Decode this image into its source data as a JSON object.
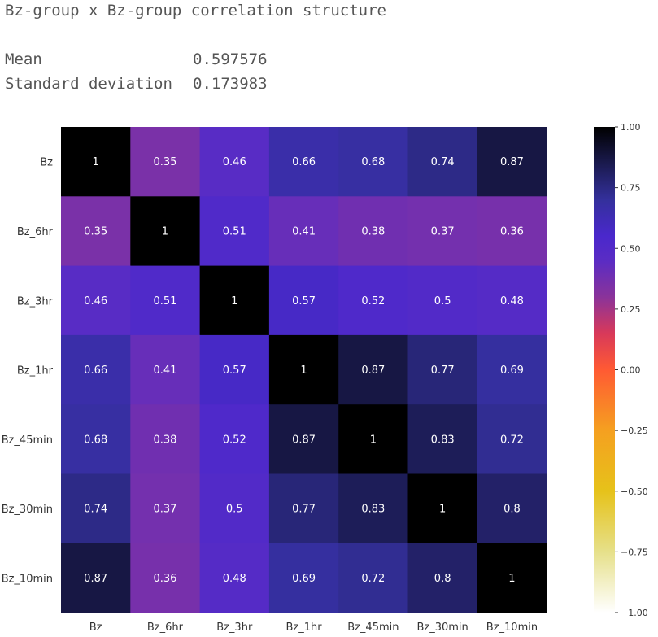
{
  "header": {
    "title": "Bz-group x Bz-group correlation structure",
    "stats": [
      {
        "label": "Mean",
        "value": "0.597576"
      },
      {
        "label": "Standard deviation",
        "value": "0.173983"
      }
    ]
  },
  "chart_data": {
    "type": "heatmap",
    "rows": [
      "Bz",
      "Bz_6hr",
      "Bz_3hr",
      "Bz_1hr",
      "Bz_45min",
      "Bz_30min",
      "Bz_10min"
    ],
    "columns": [
      "Bz",
      "Bz_6hr",
      "Bz_3hr",
      "Bz_1hr",
      "Bz_45min",
      "Bz_30min",
      "Bz_10min"
    ],
    "values": [
      [
        1,
        0.35,
        0.46,
        0.66,
        0.68,
        0.74,
        0.87
      ],
      [
        0.35,
        1,
        0.51,
        0.41,
        0.38,
        0.37,
        0.36
      ],
      [
        0.46,
        0.51,
        1,
        0.57,
        0.52,
        0.5,
        0.48
      ],
      [
        0.66,
        0.41,
        0.57,
        1,
        0.87,
        0.77,
        0.69
      ],
      [
        0.68,
        0.38,
        0.52,
        0.87,
        1,
        0.83,
        0.72
      ],
      [
        0.74,
        0.37,
        0.5,
        0.77,
        0.83,
        1,
        0.8
      ],
      [
        0.87,
        0.36,
        0.48,
        0.69,
        0.72,
        0.8,
        1
      ]
    ],
    "colorbar": {
      "range": [
        -1,
        1
      ],
      "ticks": [
        "1.00",
        "0.75",
        "0.50",
        "0.25",
        "0.00",
        "−0.25",
        "−0.50",
        "−0.75",
        "−1.00"
      ],
      "tick_values": [
        1,
        0.75,
        0.5,
        0.25,
        0,
        -0.25,
        -0.5,
        -0.75,
        -1
      ],
      "colormap": "CMRmap_r",
      "color_stops": [
        {
          "v": -1.0,
          "c": "#ffffff"
        },
        {
          "v": -0.75,
          "c": "#e6e08a"
        },
        {
          "v": -0.5,
          "c": "#e6c21a"
        },
        {
          "v": -0.25,
          "c": "#f5a020"
        },
        {
          "v": 0.0,
          "c": "#ff5a33"
        },
        {
          "v": 0.15,
          "c": "#d8395a"
        },
        {
          "v": 0.3,
          "c": "#8a339a"
        },
        {
          "v": 0.45,
          "c": "#5a2cc4"
        },
        {
          "v": 0.55,
          "c": "#4a28cc"
        },
        {
          "v": 0.7,
          "c": "#34309c"
        },
        {
          "v": 0.85,
          "c": "#1a1a4e"
        },
        {
          "v": 1.0,
          "c": "#000000"
        }
      ]
    }
  }
}
